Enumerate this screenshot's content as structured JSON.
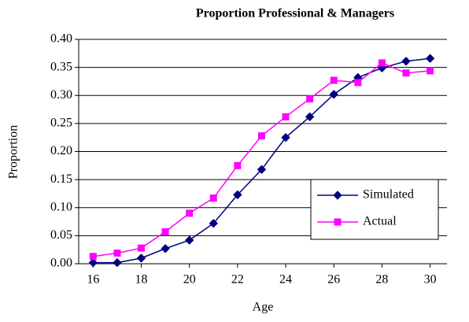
{
  "chart_data": {
    "type": "line",
    "title": "Proportion Professional & Managers",
    "x_label": "Age",
    "y_label": "Proportion",
    "x": [
      16,
      17,
      18,
      19,
      20,
      21,
      22,
      23,
      24,
      25,
      26,
      27,
      28,
      29,
      30
    ],
    "series": [
      {
        "name": "Simulated",
        "color": "#000080",
        "marker": "diamond",
        "values": [
          0.002,
          0.002,
          0.01,
          0.027,
          0.042,
          0.072,
          0.123,
          0.168,
          0.225,
          0.262,
          0.302,
          0.332,
          0.349,
          0.361,
          0.366
        ]
      },
      {
        "name": "Actual",
        "color": "#ff00ff",
        "marker": "square",
        "values": [
          0.013,
          0.019,
          0.028,
          0.057,
          0.09,
          0.117,
          0.175,
          0.228,
          0.262,
          0.294,
          0.327,
          0.323,
          0.358,
          0.34,
          0.344
        ]
      }
    ],
    "xlim": [
      15.4,
      30.7
    ],
    "xticks": [
      16,
      18,
      20,
      22,
      24,
      26,
      28,
      30
    ],
    "ylim": [
      0,
      0.4
    ],
    "yticks": [
      {
        "value": 0,
        "label": "0.00"
      },
      {
        "value": 0.05,
        "label": "0.05"
      },
      {
        "value": 0.1,
        "label": "0.10"
      },
      {
        "value": 0.15,
        "label": "0.15"
      },
      {
        "value": 0.2,
        "label": "0.20"
      },
      {
        "value": 0.25,
        "label": "0.25"
      },
      {
        "value": 0.3,
        "label": "0.30"
      },
      {
        "value": 0.35,
        "label": "0.35"
      },
      {
        "value": 0.4,
        "label": "0.40"
      }
    ],
    "grid": true,
    "legend": "lower right"
  }
}
